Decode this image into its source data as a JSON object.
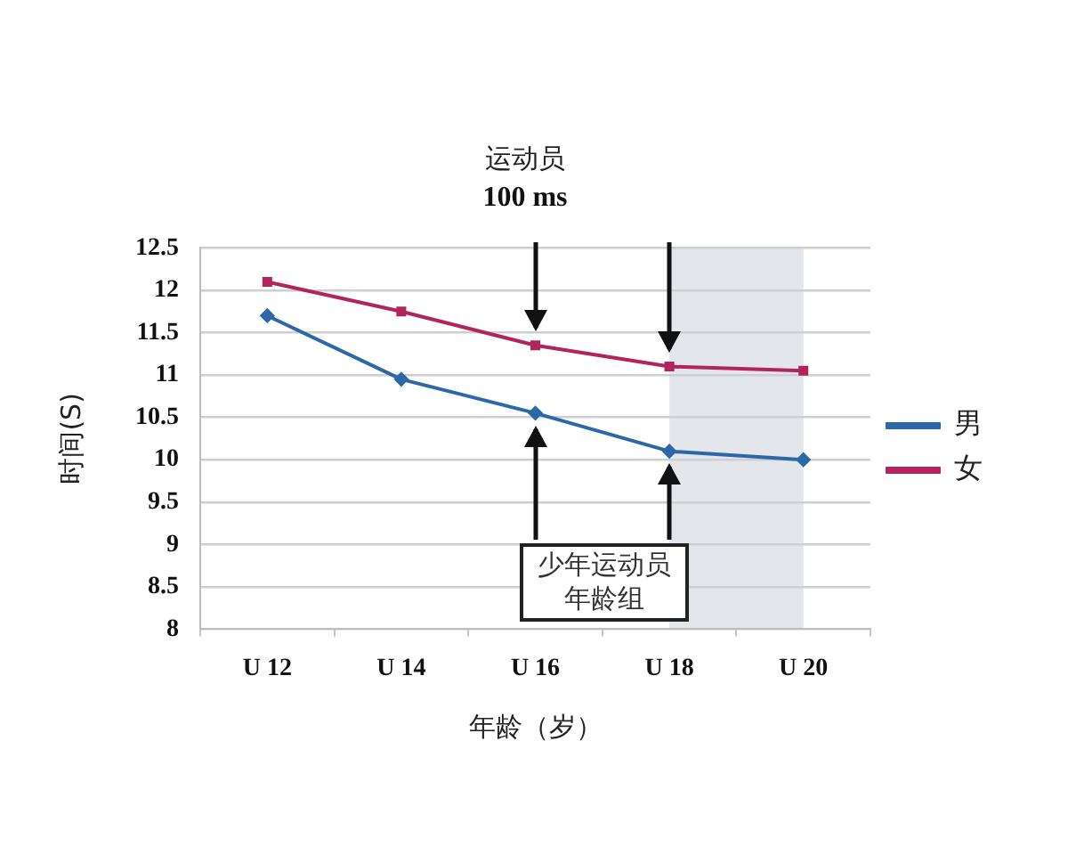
{
  "chart_data": {
    "type": "line",
    "title": "运动员",
    "subtitle": "100 ms",
    "xlabel": "年龄（岁）",
    "ylabel": "时间(S)",
    "categories": [
      "U 12",
      "U 14",
      "U 16",
      "U 18",
      "U 20"
    ],
    "series": [
      {
        "name": "男",
        "color": "#2c68a8",
        "values": [
          11.7,
          10.95,
          10.55,
          10.1,
          10.0
        ],
        "marker": "diamond"
      },
      {
        "name": "女",
        "color": "#b2245c",
        "values": [
          12.1,
          11.75,
          11.35,
          11.1,
          11.05
        ],
        "marker": "square"
      }
    ],
    "ylim": [
      8,
      12.5
    ],
    "yticks": [
      8,
      8.5,
      9,
      9.5,
      10,
      10.5,
      11,
      11.5,
      12,
      12.5
    ],
    "grid": "y",
    "legend": "right",
    "line_style": "solid",
    "bands": [
      {
        "axis": "x",
        "from": "U 18",
        "to": "U 20",
        "color": "#e3e6eb"
      }
    ],
    "annotations": [
      {
        "text": "少年运动员年龄组",
        "x": "U 18",
        "y": 10.1
      }
    ]
  }
}
